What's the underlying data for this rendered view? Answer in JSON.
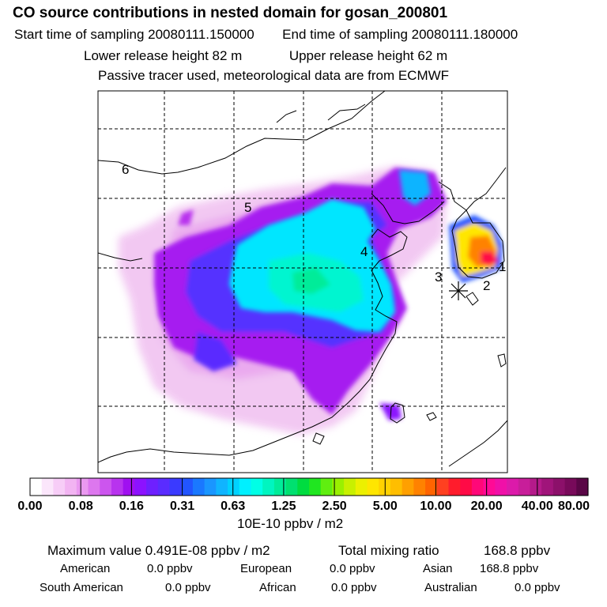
{
  "header": {
    "title": "CO  source contributions in nested domain for gosan_200801",
    "start_label": "Start time of sampling 20080111.150000",
    "end_label": "End time of sampling 20080111.180000",
    "lower_label": "Lower release height   82 m",
    "upper_label": "Upper release height   62 m",
    "info": "Passive tracer used, meteorological data are from ECMWF"
  },
  "map": {
    "markers": [
      {
        "id": "1",
        "label": "1"
      },
      {
        "id": "2",
        "label": "2"
      },
      {
        "id": "3",
        "label": "3"
      },
      {
        "id": "4",
        "label": "4"
      },
      {
        "id": "5",
        "label": "5"
      },
      {
        "id": "6",
        "label": "6"
      }
    ],
    "release_site": "star",
    "palette": {
      "land_outline": "#000000",
      "grid": "#000000"
    }
  },
  "colorbar": {
    "labels": [
      "0.00",
      "0.08",
      "0.16",
      "0.31",
      "0.63",
      "1.25",
      "2.50",
      "5.00",
      "10.00",
      "20.00",
      "40.00",
      "80.00"
    ],
    "unit": "10E-10 ppbv / m2",
    "colors": [
      "#ffffff",
      "#fbe6fb",
      "#f7cdf7",
      "#f2b4f2",
      "#ea99f0",
      "#dd77ee",
      "#cc55ee",
      "#b833ee",
      "#a010f0",
      "#8c12ff",
      "#6e20ff",
      "#5a2cff",
      "#3a3aff",
      "#2255ff",
      "#1a78ff",
      "#1a96ff",
      "#10b4ff",
      "#00d2ff",
      "#00f0ff",
      "#00ffe6",
      "#00f5c0",
      "#00ec99",
      "#00e070",
      "#00dc40",
      "#20e620",
      "#60ee10",
      "#9af000",
      "#c8f000",
      "#ecf000",
      "#ffe600",
      "#ffd200",
      "#ffbe00",
      "#ffa000",
      "#ff8200",
      "#ff6400",
      "#ff4020",
      "#ff1c2c",
      "#ff0a46",
      "#ff0878",
      "#ff0a96",
      "#f010a8",
      "#dc1aaa",
      "#c81e9a",
      "#b41a8a",
      "#a0147a",
      "#8c106a",
      "#780a5a",
      "#5a0646"
    ]
  },
  "footer": {
    "max_label": "Maximum value  0.491E-08 ppbv / m2",
    "total_label": "Total mixing ratio",
    "total_value": "168.8 ppbv",
    "american_label": "American",
    "american_value": "0.0 ppbv",
    "european_label": "European",
    "european_value": "0.0 ppbv",
    "asian_label": "Asian",
    "asian_value": "168.8 ppbv",
    "south_american_label": "South American",
    "south_american_value": "0.0 ppbv",
    "african_label": "African",
    "african_value": "0.0 ppbv",
    "australian_label": "Australian",
    "australian_value": "0.0 ppbv"
  }
}
